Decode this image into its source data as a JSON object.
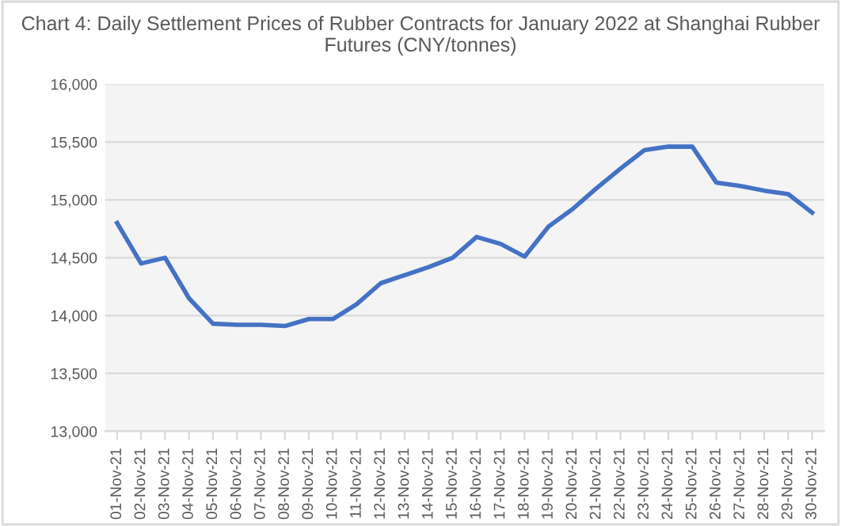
{
  "chart_data": {
    "type": "line",
    "title": "Chart 4: Daily Settlement Prices of Rubber Contracts for January 2022 at Shanghai Rubber Futures (CNY/tonnes)",
    "categories": [
      "01-Nov-21",
      "02-Nov-21",
      "03-Nov-21",
      "04-Nov-21",
      "05-Nov-21",
      "06-Nov-21",
      "07-Nov-21",
      "08-Nov-21",
      "09-Nov-21",
      "10-Nov-21",
      "11-Nov-21",
      "12-Nov-21",
      "13-Nov-21",
      "14-Nov-21",
      "15-Nov-21",
      "16-Nov-21",
      "17-Nov-21",
      "18-Nov-21",
      "19-Nov-21",
      "20-Nov-21",
      "21-Nov-21",
      "22-Nov-21",
      "23-Nov-21",
      "24-Nov-21",
      "25-Nov-21",
      "26-Nov-21",
      "27-Nov-21",
      "28-Nov-21",
      "29-Nov-21",
      "30-Nov-21"
    ],
    "series": [
      {
        "color": "#4472c4",
        "values": [
          14800,
          14450,
          14500,
          14150,
          13930,
          13920,
          13920,
          13910,
          13970,
          13970,
          14100,
          14280,
          14350,
          14420,
          14500,
          14680,
          14620,
          14510,
          14770,
          14920,
          15100,
          15270,
          15430,
          15460,
          15460,
          15150,
          15120,
          15080,
          15050,
          14890
        ]
      }
    ],
    "ylim": [
      13000,
      16000
    ],
    "yticks": [
      {
        "value": 13000,
        "label": "13,000"
      },
      {
        "value": 13500,
        "label": "13,500"
      },
      {
        "value": 14000,
        "label": "14,000"
      },
      {
        "value": 14500,
        "label": "14,500"
      },
      {
        "value": 15000,
        "label": "15,000"
      },
      {
        "value": 15500,
        "label": "15,500"
      },
      {
        "value": 16000,
        "label": "16,000"
      }
    ],
    "grid": "y",
    "marker": "none",
    "line_style": "solid"
  }
}
